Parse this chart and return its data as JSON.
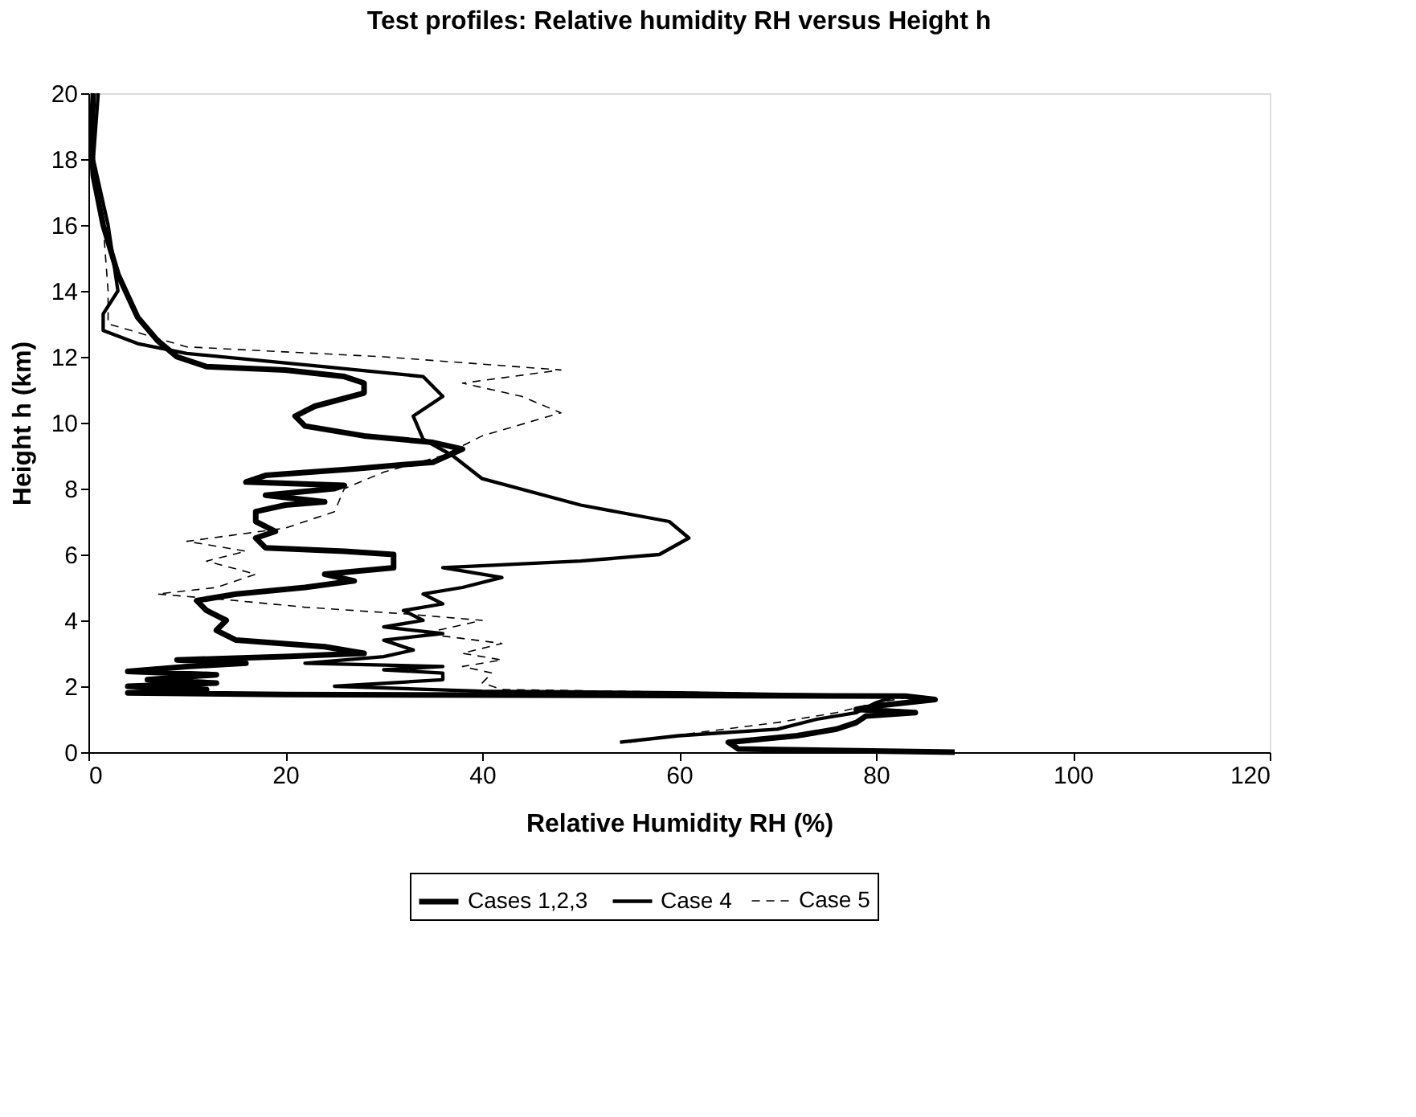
{
  "chart_data": {
    "type": "line",
    "title": "Test profiles: Relative humidity RH versus Height h",
    "xlabel": "Relative Humidity RH (%)",
    "ylabel": "Height h (km)",
    "xlim": [
      0,
      120
    ],
    "xticks": [
      0,
      20,
      40,
      60,
      80,
      100,
      120
    ],
    "ylim": [
      0,
      20
    ],
    "yticks": [
      0,
      2,
      4,
      6,
      8,
      10,
      12,
      14,
      16,
      18,
      20
    ],
    "grid": false,
    "legend": "bottom",
    "marker": "none",
    "series": [
      {
        "name": "Cases 1,2,3",
        "color": "#000000",
        "line_style": "solid",
        "x": [
          88,
          66,
          65,
          72,
          76,
          78,
          79,
          84,
          78,
          80,
          86,
          83,
          20,
          4,
          12,
          4,
          13,
          6,
          13,
          4,
          10,
          16,
          9,
          20,
          28,
          24,
          15,
          13,
          14,
          12,
          11,
          15,
          22,
          27,
          24,
          31,
          31,
          26,
          18,
          17,
          19,
          17,
          17,
          20,
          24,
          18,
          25,
          26,
          16,
          18,
          27,
          35,
          38,
          35,
          28,
          22,
          21,
          23,
          28,
          28,
          26,
          20,
          12,
          9,
          7,
          5,
          3,
          1.5,
          0.5,
          0.3,
          0.5
        ],
        "values": [
          0,
          0.1,
          0.3,
          0.5,
          0.7,
          0.9,
          1.1,
          1.2,
          1.3,
          1.4,
          1.6,
          1.7,
          1.75,
          1.8,
          1.9,
          2.0,
          2.1,
          2.2,
          2.35,
          2.45,
          2.6,
          2.7,
          2.8,
          2.9,
          3.0,
          3.2,
          3.4,
          3.7,
          4.0,
          4.3,
          4.6,
          4.8,
          5.0,
          5.2,
          5.4,
          5.6,
          6.0,
          6.1,
          6.2,
          6.5,
          6.7,
          7.0,
          7.3,
          7.5,
          7.6,
          7.8,
          8.0,
          8.1,
          8.2,
          8.4,
          8.6,
          8.8,
          9.2,
          9.4,
          9.6,
          9.9,
          10.2,
          10.5,
          10.9,
          11.2,
          11.4,
          11.6,
          11.7,
          12.0,
          12.5,
          13.2,
          14.5,
          16,
          17.5,
          18.5,
          20
        ]
      },
      {
        "name": "Case 4",
        "color": "#000000",
        "line_style": "solid",
        "x": [
          54,
          60,
          70,
          74,
          78,
          80,
          82,
          60,
          40,
          25,
          36,
          36,
          30,
          36,
          22,
          30,
          33,
          30,
          36,
          30,
          34,
          32,
          36,
          34,
          38,
          42,
          36,
          50,
          58,
          61,
          59,
          50,
          40,
          37,
          34,
          33,
          36,
          34,
          24,
          10,
          5,
          1.5,
          1.5,
          3,
          2,
          0.5,
          1
        ],
        "values": [
          0.3,
          0.5,
          0.7,
          1.0,
          1.2,
          1.5,
          1.7,
          1.8,
          1.85,
          2.0,
          2.2,
          2.4,
          2.5,
          2.6,
          2.7,
          2.9,
          3.1,
          3.4,
          3.6,
          3.8,
          4.0,
          4.3,
          4.5,
          4.8,
          5.0,
          5.3,
          5.6,
          5.8,
          6.0,
          6.5,
          7.0,
          7.5,
          8.3,
          9.0,
          9.5,
          10.2,
          10.8,
          11.4,
          11.7,
          12.1,
          12.4,
          12.8,
          13.3,
          14,
          16,
          18,
          20
        ]
      },
      {
        "name": "Case 5",
        "color": "#000000",
        "line_style": "dashed",
        "x": [
          55,
          62,
          70,
          76,
          80,
          84,
          65,
          42,
          40,
          41,
          38,
          42,
          38,
          42,
          34,
          40,
          32,
          22,
          15,
          7,
          13,
          17,
          12,
          16,
          10,
          20,
          25,
          26,
          30,
          36,
          40,
          48,
          44,
          38,
          48,
          30,
          10,
          2,
          2,
          1.5,
          0.5,
          0.5
        ],
        "values": [
          0.3,
          0.6,
          0.9,
          1.2,
          1.5,
          1.7,
          1.8,
          1.9,
          2.1,
          2.4,
          2.6,
          2.8,
          3.0,
          3.3,
          3.6,
          4.0,
          4.2,
          4.4,
          4.6,
          4.8,
          5.0,
          5.4,
          5.8,
          6.1,
          6.4,
          6.8,
          7.3,
          8.0,
          8.5,
          9.0,
          9.6,
          10.3,
          10.8,
          11.2,
          11.6,
          12.0,
          12.3,
          13.0,
          14.0,
          16,
          18,
          20
        ]
      }
    ]
  }
}
